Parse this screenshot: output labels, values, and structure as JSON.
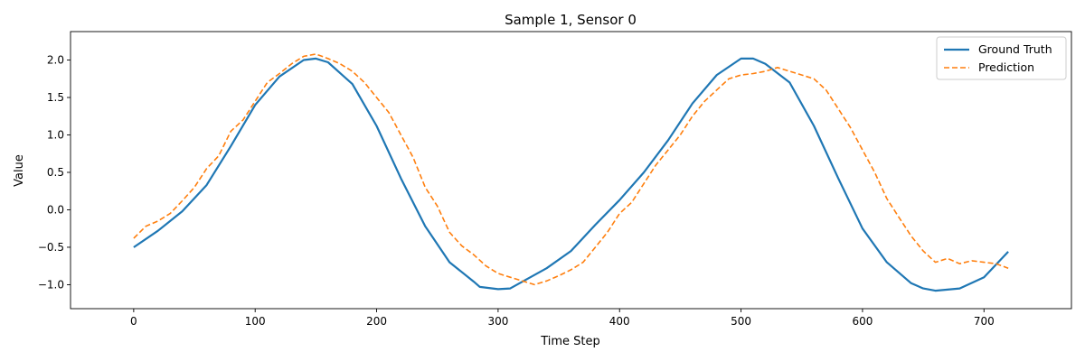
{
  "chart_data": {
    "type": "line",
    "title": "Sample 1, Sensor 0",
    "xlabel": "Time Step",
    "ylabel": "Value",
    "xlim": [
      -52,
      772
    ],
    "ylim": [
      -1.32,
      2.38
    ],
    "xticks": [
      0,
      100,
      200,
      300,
      400,
      500,
      600,
      700
    ],
    "yticks": [
      -1.0,
      -0.5,
      0.0,
      0.5,
      1.0,
      1.5,
      2.0
    ],
    "ytick_labels": [
      "−1.0",
      "−0.5",
      "0.0",
      "0.5",
      "1.0",
      "1.5",
      "2.0"
    ],
    "grid": false,
    "legend_position": "top-right",
    "series": [
      {
        "name": "Ground Truth",
        "color": "#1f77b4",
        "style": "solid",
        "x": [
          0,
          20,
          40,
          60,
          80,
          100,
          120,
          140,
          150,
          160,
          180,
          200,
          220,
          240,
          260,
          280,
          285,
          300,
          310,
          320,
          340,
          360,
          380,
          400,
          420,
          440,
          460,
          480,
          500,
          510,
          520,
          540,
          560,
          580,
          600,
          620,
          640,
          650,
          660,
          680,
          700,
          720
        ],
        "values": [
          -0.5,
          -0.28,
          -0.02,
          0.33,
          0.85,
          1.4,
          1.78,
          2.0,
          2.02,
          1.97,
          1.68,
          1.12,
          0.42,
          -0.22,
          -0.7,
          -0.96,
          -1.03,
          -1.06,
          -1.05,
          -0.96,
          -0.78,
          -0.55,
          -0.2,
          0.13,
          0.5,
          0.93,
          1.42,
          1.8,
          2.02,
          2.02,
          1.95,
          1.7,
          1.12,
          0.42,
          -0.25,
          -0.7,
          -0.98,
          -1.05,
          -1.08,
          -1.05,
          -0.9,
          -0.56
        ]
      },
      {
        "name": "Prediction",
        "color": "#ff7f0e",
        "style": "dashed",
        "x": [
          0,
          10,
          20,
          30,
          40,
          50,
          60,
          70,
          80,
          90,
          100,
          110,
          120,
          130,
          140,
          150,
          160,
          170,
          180,
          190,
          200,
          210,
          220,
          230,
          240,
          250,
          260,
          270,
          280,
          290,
          300,
          310,
          320,
          330,
          340,
          350,
          360,
          370,
          380,
          390,
          400,
          410,
          420,
          430,
          440,
          450,
          460,
          470,
          480,
          490,
          500,
          510,
          520,
          530,
          540,
          550,
          560,
          570,
          580,
          590,
          600,
          610,
          620,
          630,
          640,
          650,
          660,
          670,
          680,
          690,
          700,
          710,
          720
        ],
        "values": [
          -0.38,
          -0.22,
          -0.15,
          -0.05,
          0.12,
          0.3,
          0.55,
          0.72,
          1.05,
          1.2,
          1.45,
          1.7,
          1.82,
          1.95,
          2.05,
          2.08,
          2.02,
          1.95,
          1.85,
          1.7,
          1.5,
          1.3,
          1.0,
          0.7,
          0.3,
          0.05,
          -0.3,
          -0.48,
          -0.6,
          -0.75,
          -0.85,
          -0.9,
          -0.95,
          -1.0,
          -0.95,
          -0.88,
          -0.8,
          -0.7,
          -0.5,
          -0.3,
          -0.05,
          0.1,
          0.35,
          0.6,
          0.8,
          1.0,
          1.25,
          1.45,
          1.6,
          1.75,
          1.8,
          1.82,
          1.85,
          1.9,
          1.85,
          1.8,
          1.75,
          1.6,
          1.35,
          1.1,
          0.8,
          0.5,
          0.15,
          -0.1,
          -0.35,
          -0.55,
          -0.7,
          -0.65,
          -0.72,
          -0.68,
          -0.7,
          -0.72,
          -0.78
        ]
      }
    ]
  }
}
